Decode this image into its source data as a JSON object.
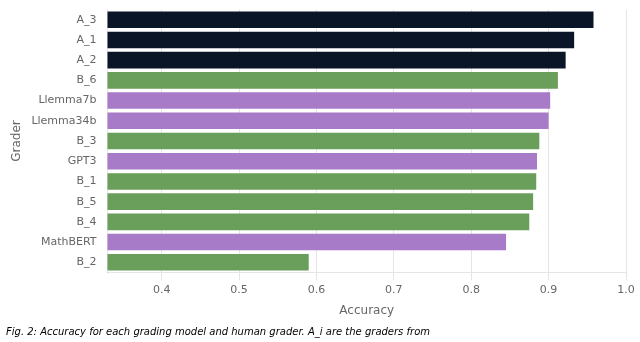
{
  "chart_data": {
    "type": "bar",
    "orientation": "horizontal",
    "categories": [
      "A_3",
      "A_1",
      "A_2",
      "B_6",
      "Llemma7b",
      "Llemma34b",
      "B_3",
      "GPT3",
      "B_1",
      "B_5",
      "B_4",
      "MathBERT",
      "B_2"
    ],
    "values": [
      0.958,
      0.933,
      0.922,
      0.912,
      0.902,
      0.9,
      0.888,
      0.885,
      0.884,
      0.88,
      0.875,
      0.845,
      0.59
    ],
    "colors": [
      "#0a1628",
      "#0a1628",
      "#0a1628",
      "#6a9e5b",
      "#a87bc8",
      "#a87bc8",
      "#6a9e5b",
      "#a87bc8",
      "#6a9e5b",
      "#6a9e5b",
      "#6a9e5b",
      "#a87bc8",
      "#6a9e5b"
    ],
    "xlabel": "Accuracy",
    "ylabel": "Grader",
    "xlim": [
      0.33,
      1.0
    ],
    "xticks": [
      0.4,
      0.5,
      0.6,
      0.7,
      0.8,
      0.9,
      {
        "value": 1.0,
        "label": "1.0"
      }
    ],
    "grid": true,
    "caption": "Fig. 2: Accuracy for each grading model and human grader. A_i are the graders from"
  }
}
